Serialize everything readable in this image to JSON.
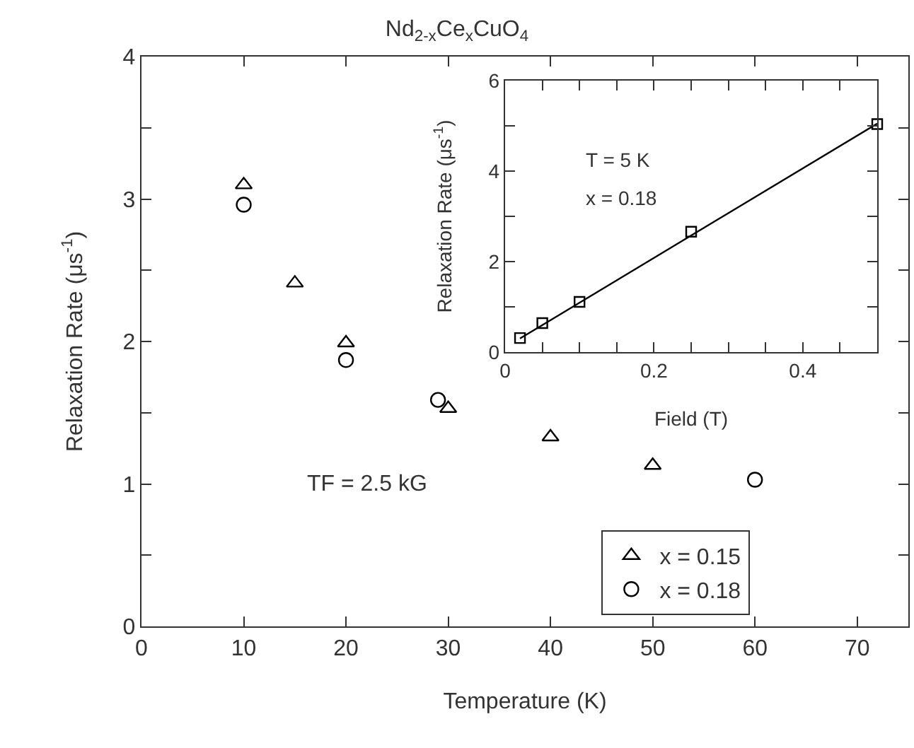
{
  "chart_data": [
    {
      "type": "scatter",
      "title": "Nd$_{2-x}$Ce$_{x}$CuO$_{4}$",
      "xlabel": "Temperature (K)",
      "ylabel": "Relaxation Rate (μs$^{-1}$)",
      "xlim": [
        0,
        75
      ],
      "xticks": [
        0,
        10,
        20,
        30,
        40,
        50,
        60,
        70
      ],
      "ylim": [
        0,
        4
      ],
      "yticks": [
        0,
        {
          "value": 0.5,
          "label": null
        },
        1,
        {
          "value": 1.5,
          "label": null
        },
        2,
        {
          "value": 2.5,
          "label": null
        },
        3,
        {
          "value": 3.5,
          "label": null
        },
        4
      ],
      "legend": "bottom right",
      "annotations": [
        "TF = 2.5 kG"
      ],
      "series": [
        {
          "name": "x = 0.15",
          "color": "#000000",
          "marker": "triangle",
          "x": [
            10,
            15,
            20,
            30,
            40,
            50
          ],
          "values": [
            3.1,
            2.41,
            1.99,
            1.53,
            1.33,
            1.13
          ]
        },
        {
          "name": "x = 0.18",
          "color": "#000000",
          "marker": "circle",
          "x": [
            10,
            20,
            29,
            60
          ],
          "values": [
            2.96,
            1.87,
            1.59,
            1.03
          ]
        }
      ]
    },
    {
      "type": "scatter",
      "xlabel": "Field (T)",
      "ylabel": "Relaxation Rate (μs$^{-1}$)",
      "xlim": [
        0,
        0.5
      ],
      "xticks": [
        0,
        {
          "value": 0.05,
          "label": null
        },
        {
          "value": 0.1,
          "label": null
        },
        {
          "value": 0.15,
          "label": null
        },
        0.2,
        {
          "value": 0.25,
          "label": null
        },
        {
          "value": 0.3,
          "label": null
        },
        {
          "value": 0.35,
          "label": null
        },
        0.4,
        {
          "value": 0.45,
          "label": null
        }
      ],
      "ylim": [
        0,
        6
      ],
      "yticks": [
        0,
        {
          "value": 1,
          "label": null
        },
        2,
        {
          "value": 3,
          "label": null
        },
        4,
        {
          "value": 5,
          "label": null
        },
        6
      ],
      "annotations": [
        "T = 5 K",
        "x = 0.18"
      ],
      "series": [
        {
          "color": "#000000",
          "marker": "square",
          "x": [
            0.02,
            0.05,
            0.1,
            0.25,
            0.5
          ],
          "values": [
            0.31,
            0.64,
            1.11,
            2.66,
            5.04
          ]
        },
        {
          "type": "line",
          "color": "#000000",
          "marker": "none",
          "x": [
            0.02,
            0.5
          ],
          "values": [
            0.3,
            5.05
          ]
        }
      ]
    }
  ]
}
